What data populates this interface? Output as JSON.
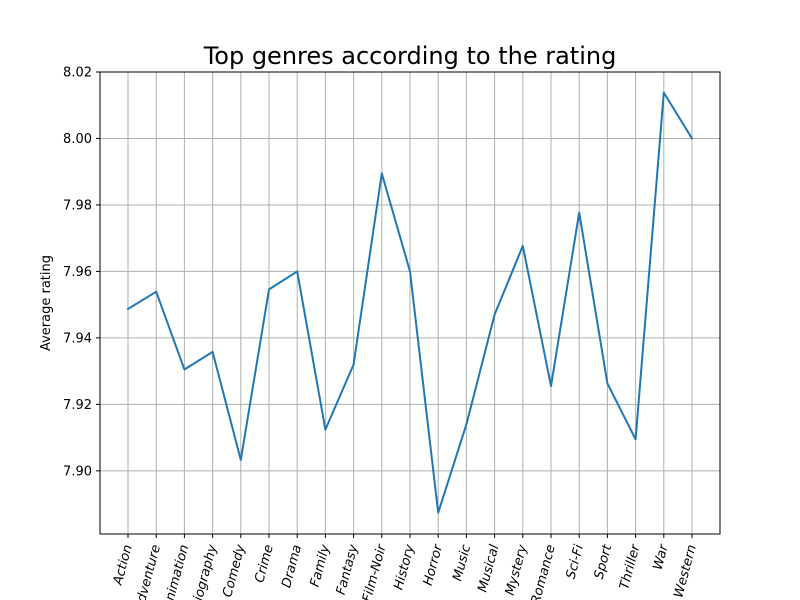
{
  "chart_data": {
    "type": "line",
    "title": "Top genres according to the rating",
    "xlabel": "",
    "ylabel": "Average rating",
    "categories": [
      "Action",
      "Adventure",
      "Animation",
      "Biography",
      "Comedy",
      "Crime",
      "Drama",
      "Family",
      "Fantasy",
      "Film-Noir",
      "History",
      "Horror",
      "Music",
      "Musical",
      "Mystery",
      "Romance",
      "Sci-Fi",
      "Sport",
      "Thriller",
      "War",
      "Western"
    ],
    "series": [
      {
        "values": [
          7.9487,
          7.9539,
          7.9305,
          7.9358,
          7.9033,
          7.9546,
          7.96,
          7.9124,
          7.932,
          7.9895,
          7.96,
          7.8874,
          7.914,
          7.947,
          7.9677,
          7.9255,
          7.9777,
          7.9263,
          7.9095,
          8.0138,
          8.0
        ],
        "color": "#1f77b4"
      }
    ],
    "ylim": [
      7.881,
      8.02
    ],
    "yticks": [
      7.9,
      7.92,
      7.94,
      7.96,
      7.98,
      8.0,
      8.02
    ],
    "ytick_labels": [
      "7.90",
      "7.92",
      "7.94",
      "7.96",
      "7.98",
      "8.00",
      "8.02"
    ],
    "grid": true,
    "xtick_rotation": 75
  }
}
